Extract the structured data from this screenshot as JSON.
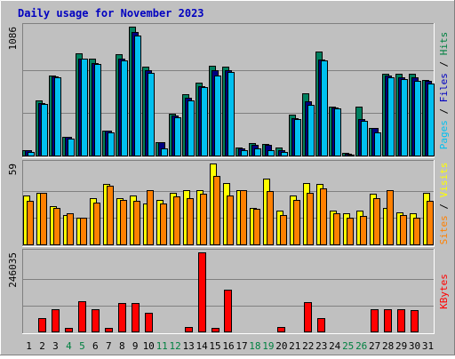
{
  "chart_data": {
    "type": "bar",
    "title": "Daily usage for November 2023",
    "categories": [
      "1",
      "2",
      "3",
      "4",
      "5",
      "6",
      "7",
      "8",
      "9",
      "10",
      "11",
      "12",
      "13",
      "14",
      "15",
      "16",
      "17",
      "18",
      "19",
      "20",
      "21",
      "22",
      "23",
      "24",
      "25",
      "26",
      "27",
      "28",
      "29",
      "30",
      "31"
    ],
    "weekend_days": [
      "4",
      "5",
      "11",
      "12",
      "18",
      "19",
      "25",
      "26"
    ],
    "panels": [
      {
        "id": "hits-files-pages",
        "ymax_label": "1086",
        "ymax": 1086,
        "right_labels": [
          {
            "text": "Pages",
            "color": "#00c0f0"
          },
          {
            "text": " / ",
            "color": "#000000"
          },
          {
            "text": "Files",
            "color": "#0000c0"
          },
          {
            "text": " / ",
            "color": "#000000"
          },
          {
            "text": "Hits",
            "color": "#008040"
          }
        ],
        "series": [
          {
            "name": "Hits",
            "color": "#008060",
            "values": [
              50,
              465,
              680,
              160,
              860,
              820,
              215,
              855,
              1086,
              750,
              120,
              360,
              520,
              620,
              760,
              750,
              75,
              110,
              105,
              75,
              350,
              530,
              880,
              420,
              30,
              415,
              240,
              690,
              690,
              690,
              640
            ]
          },
          {
            "name": "Files",
            "color": "#000080",
            "values": [
              50,
              450,
              670,
              160,
              820,
              780,
              215,
              820,
              1040,
              720,
              120,
              340,
              490,
              590,
              720,
              720,
              70,
              100,
              100,
              55,
              320,
              460,
              810,
              410,
              20,
              310,
              240,
              680,
              660,
              660,
              630
            ]
          },
          {
            "name": "Pages",
            "color": "#00c0f0",
            "values": [
              40,
              440,
              660,
              150,
              820,
              770,
              200,
              800,
              1010,
              700,
              70,
              330,
              470,
              580,
              680,
              710,
              55,
              70,
              55,
              40,
              310,
              435,
              800,
              400,
              15,
              300,
              200,
              660,
              650,
              630,
              610
            ]
          }
        ]
      },
      {
        "id": "visits-sites",
        "ymax_label": "59",
        "ymax": 59,
        "right_labels": [
          {
            "text": "Sites",
            "color": "#ff8000"
          },
          {
            "text": " / ",
            "color": "#000000"
          },
          {
            "text": "Visits",
            "color": "#ffff00"
          }
        ],
        "series": [
          {
            "name": "Visits",
            "color": "#ffff00",
            "values": [
              36,
              38,
              28,
              22,
              20,
              34,
              44,
              34,
              36,
              30,
              33,
              38,
              40,
              40,
              59,
              45,
              40,
              27,
              48,
              25,
              36,
              45,
              44,
              25,
              23,
              25,
              37,
              27,
              24,
              23,
              38
            ]
          },
          {
            "name": "Sites",
            "color": "#ff8000",
            "values": [
              32,
              38,
              27,
              23,
              20,
              31,
              43,
              33,
              32,
              40,
              30,
              35,
              34,
              37,
              50,
              36,
              40,
              26,
              39,
              22,
              33,
              38,
              41,
              23,
              20,
              21,
              34,
              40,
              22,
              20,
              32
            ]
          }
        ]
      },
      {
        "id": "kbytes",
        "ymax_label": "246035",
        "ymax": 246035,
        "right_labels": [
          {
            "text": "KBytes",
            "color": "#ff0000"
          }
        ],
        "series": [
          {
            "name": "KBytes",
            "color": "#ff0000",
            "values": [
              3000,
              45000,
              72000,
              15000,
              95000,
              72000,
              15000,
              90000,
              90000,
              60000,
              1500,
              1500,
              17000,
              246035,
              15000,
              132000,
              1500,
              1500,
              1500,
              17000,
              1500,
              93000,
              45000,
              1500,
              1500,
              1500,
              72000,
              72000,
              72000,
              68000,
              1500
            ]
          }
        ]
      }
    ],
    "grid_fraction": [
      0.333,
      0.667
    ]
  }
}
